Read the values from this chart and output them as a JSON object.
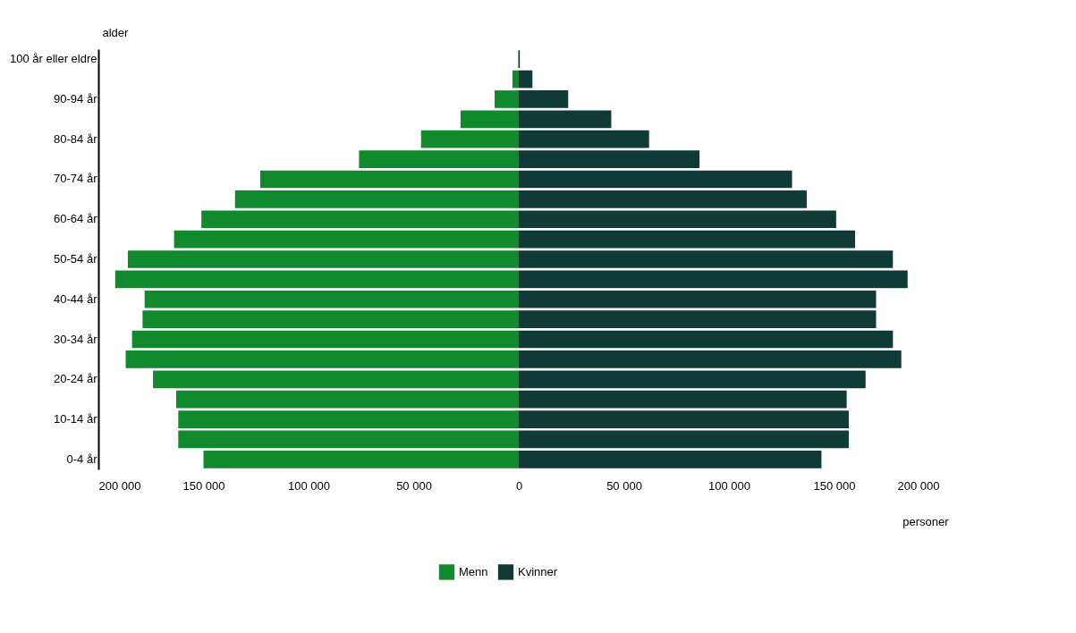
{
  "chart_data": {
    "type": "bar",
    "orientation": "horizontal",
    "stacked": true,
    "categories": [
      "100 år eller eldre",
      null,
      "90-94 år",
      null,
      "80-84 år",
      null,
      "70-74 år",
      null,
      "60-64 år",
      null,
      "50-54 år",
      null,
      "40-44 år",
      null,
      "30-34 år",
      null,
      "20-24 år",
      null,
      "10-14 år",
      null,
      "0-4 år"
    ],
    "series": [
      {
        "name": "Menn",
        "color": "#118a2e",
        "values": [
          -300,
          -3000,
          -11500,
          -27700,
          -46500,
          -76000,
          -123000,
          -135000,
          -151000,
          -164000,
          -186000,
          -192000,
          -178000,
          -179000,
          -184000,
          -187000,
          -174000,
          -163000,
          -162000,
          -162000,
          -150000
        ]
      },
      {
        "name": "Kvinner",
        "color": "#103a35",
        "values": [
          500,
          6500,
          23500,
          44000,
          62000,
          86000,
          130000,
          137000,
          151000,
          160000,
          178000,
          185000,
          170000,
          170000,
          178000,
          182000,
          165000,
          156000,
          157000,
          157000,
          144000
        ]
      }
    ],
    "xlim": [
      -200000,
      200000
    ],
    "xticks": [
      {
        "value": -200000,
        "label": "200 000"
      },
      {
        "value": -150000,
        "label": "150 000"
      },
      {
        "value": -100000,
        "label": "100 000"
      },
      {
        "value": -50000,
        "label": "50 000"
      },
      0,
      {
        "value": 50000,
        "label": "50 000"
      },
      {
        "value": 100000,
        "label": "100 000"
      },
      {
        "value": 150000,
        "label": "150 000"
      },
      {
        "value": 200000,
        "label": "200 000"
      }
    ],
    "xlabel": "personer",
    "ylabel": "alder",
    "legend": "bottom",
    "grid": false
  }
}
